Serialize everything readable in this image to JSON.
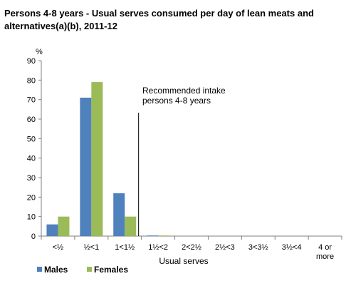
{
  "chart_data": {
    "type": "bar",
    "title": "Persons 4-8 years - Usual serves consumed per day of lean meats and alternatives(a)(b), 2011-12",
    "xlabel": "Usual serves",
    "ylabel": "%",
    "ylim": [
      0,
      90
    ],
    "yticks": [
      0,
      10,
      20,
      30,
      40,
      50,
      60,
      70,
      80,
      90
    ],
    "grid": false,
    "legend": "bottom-left",
    "categories": [
      "<½",
      "½<1",
      "1<1½",
      "1½<2",
      "2<2½",
      "2½<3",
      "3<3½",
      "3½<4",
      "4 or more"
    ],
    "series": [
      {
        "name": "Males",
        "color": "#4f81bd",
        "values": [
          6,
          71,
          22,
          0.3,
          0,
          0,
          0,
          0,
          0
        ]
      },
      {
        "name": "Females",
        "color": "#9bbb59",
        "values": [
          10,
          79,
          10,
          0.3,
          0,
          0,
          0,
          0,
          0
        ]
      }
    ],
    "annotation": {
      "text": [
        "Recommended intake",
        "persons 4-8 years"
      ],
      "at_category_boundary": "1<1½|1½<2"
    }
  }
}
